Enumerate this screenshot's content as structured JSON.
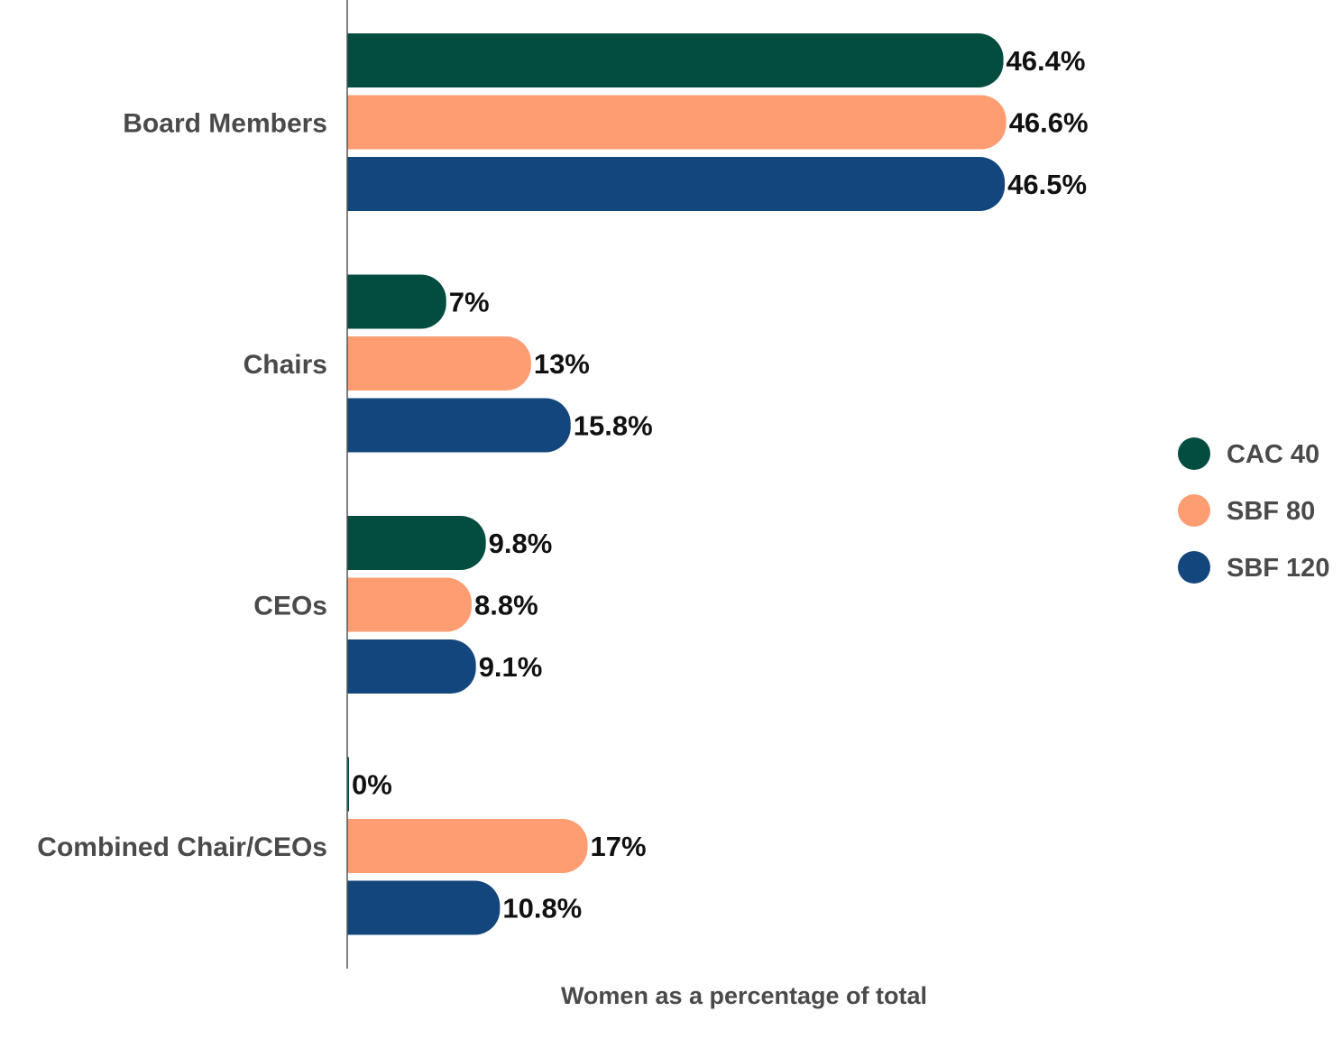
{
  "chart_data": {
    "type": "bar",
    "orientation": "horizontal",
    "title": "",
    "xlabel": "Women as a percentage of total",
    "ylabel": "",
    "xlim": [
      0,
      50
    ],
    "grid": false,
    "legend_position": "right",
    "categories": [
      "Board Members",
      "Chairs",
      "CEOs",
      "Combined Chair/CEOs"
    ],
    "series": [
      {
        "name": "CAC 40",
        "color": "#024d40",
        "values": [
          46.4,
          7,
          9.8,
          0
        ],
        "labels": [
          "46.4%",
          "7%",
          "9.8%",
          "0%"
        ]
      },
      {
        "name": "SBF 80",
        "color": "#ff9d72",
        "values": [
          46.6,
          13,
          8.8,
          17
        ],
        "labels": [
          "46.6%",
          "13%",
          "8.8%",
          "17%"
        ]
      },
      {
        "name": "SBF 120",
        "color": "#13467c",
        "values": [
          46.5,
          15.8,
          9.1,
          10.8
        ],
        "labels": [
          "46.5%",
          "15.8%",
          "9.1%",
          "10.8%"
        ]
      }
    ]
  }
}
